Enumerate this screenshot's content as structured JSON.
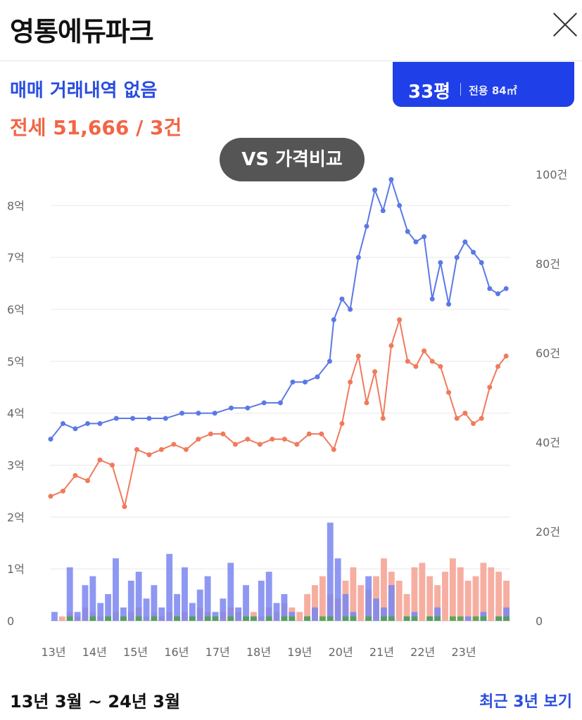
{
  "header": {
    "title": "영통에듀파크"
  },
  "summary": {
    "sale_text": "매매 거래내역 없음",
    "jeonse_text": "전세 51,666 / 3건"
  },
  "size_badge": {
    "pyeong": "33평",
    "area": "전용 84㎡"
  },
  "compare_button": "VS 가격비교",
  "footer": {
    "range": "13년 3월 ~ 24년 3월",
    "recent_link": "최근 3년 보기"
  },
  "colors": {
    "sale": "#5b78e6",
    "jeonse": "#f07a5c",
    "bar_sale": "#7a86f0",
    "bar_jeonse": "#f5a090",
    "bar_other": "#4aa24a",
    "accent": "#2a4de0"
  },
  "chart_data": {
    "type": "line",
    "x_ticks": [
      "13년",
      "14년",
      "15년",
      "16년",
      "17년",
      "18년",
      "19년",
      "20년",
      "21년",
      "22년",
      "23년"
    ],
    "y_left": {
      "ticks": [
        "0",
        "1억",
        "2억",
        "3억",
        "4억",
        "5억",
        "6억",
        "7억",
        "8억"
      ],
      "range": [
        0,
        8.6
      ],
      "unit": "억"
    },
    "y_right": {
      "ticks": [
        "0",
        "20건",
        "40건",
        "60건",
        "80건",
        "100건"
      ],
      "range": [
        0,
        100
      ]
    },
    "x_range": [
      2013.0,
      2024.2
    ],
    "series": [
      {
        "key": "sale",
        "x": [
          2013.0,
          2013.3,
          2013.6,
          2013.9,
          2014.2,
          2014.6,
          2015.0,
          2015.4,
          2015.8,
          2016.2,
          2016.6,
          2017.0,
          2017.4,
          2017.8,
          2018.2,
          2018.6,
          2018.9,
          2019.2,
          2019.5,
          2019.8,
          2019.9,
          2020.1,
          2020.3,
          2020.5,
          2020.7,
          2020.9,
          2021.1,
          2021.3,
          2021.5,
          2021.7,
          2021.9,
          2022.1,
          2022.3,
          2022.5,
          2022.7,
          2022.9,
          2023.1,
          2023.3,
          2023.5,
          2023.7,
          2023.9,
          2024.1
        ],
        "y": [
          3.5,
          3.8,
          3.7,
          3.8,
          3.8,
          3.9,
          3.9,
          3.9,
          3.9,
          4.0,
          4.0,
          4.0,
          4.1,
          4.1,
          4.2,
          4.2,
          4.6,
          4.6,
          4.7,
          5.0,
          5.8,
          6.2,
          6.0,
          7.0,
          7.6,
          8.3,
          7.9,
          8.5,
          8.0,
          7.5,
          7.3,
          7.4,
          6.2,
          6.9,
          6.1,
          7.0,
          7.3,
          7.1,
          6.9,
          6.4,
          6.3,
          6.4
        ]
      },
      {
        "key": "jeonse",
        "x": [
          2013.0,
          2013.3,
          2013.6,
          2013.9,
          2014.2,
          2014.5,
          2014.8,
          2015.1,
          2015.4,
          2015.7,
          2016.0,
          2016.3,
          2016.6,
          2016.9,
          2017.2,
          2017.5,
          2017.8,
          2018.1,
          2018.4,
          2018.7,
          2019.0,
          2019.3,
          2019.6,
          2019.9,
          2020.1,
          2020.3,
          2020.5,
          2020.7,
          2020.9,
          2021.1,
          2021.3,
          2021.5,
          2021.7,
          2021.9,
          2022.1,
          2022.3,
          2022.5,
          2022.7,
          2022.9,
          2023.1,
          2023.3,
          2023.5,
          2023.7,
          2023.9,
          2024.1
        ],
        "y": [
          2.4,
          2.5,
          2.8,
          2.7,
          3.1,
          3.0,
          2.2,
          3.3,
          3.2,
          3.3,
          3.4,
          3.3,
          3.5,
          3.6,
          3.6,
          3.4,
          3.5,
          3.4,
          3.5,
          3.5,
          3.4,
          3.6,
          3.6,
          3.3,
          3.8,
          4.6,
          5.1,
          4.2,
          4.8,
          3.9,
          5.3,
          5.8,
          5.0,
          4.9,
          5.2,
          5.0,
          4.9,
          4.4,
          3.9,
          4.0,
          3.8,
          3.9,
          4.5,
          4.9,
          5.1
        ]
      }
    ],
    "bars_sale": [
      2,
      0,
      12,
      2,
      8,
      10,
      4,
      6,
      14,
      3,
      9,
      11,
      5,
      8,
      3,
      15,
      6,
      12,
      4,
      7,
      10,
      2,
      5,
      13,
      3,
      8,
      1,
      9,
      11,
      4,
      6,
      2,
      0,
      1,
      3,
      0,
      22,
      14,
      6,
      2,
      0,
      10,
      5,
      3,
      8,
      0,
      1,
      2,
      0,
      1,
      3,
      0,
      0,
      0,
      1,
      0,
      2,
      0,
      1,
      3
    ],
    "bars_jeonse": [
      0,
      1,
      2,
      1,
      3,
      2,
      1,
      1,
      2,
      1,
      2,
      3,
      1,
      2,
      1,
      2,
      1,
      2,
      1,
      3,
      2,
      1,
      2,
      3,
      2,
      1,
      2,
      1,
      3,
      2,
      4,
      3,
      2,
      6,
      8,
      10,
      6,
      5,
      9,
      12,
      8,
      7,
      10,
      14,
      11,
      9,
      6,
      12,
      13,
      10,
      8,
      11,
      14,
      12,
      9,
      10,
      13,
      12,
      11,
      9
    ],
    "bars_other": [
      0,
      0,
      1,
      0,
      0,
      1,
      0,
      1,
      0,
      1,
      0,
      1,
      0,
      1,
      0,
      0,
      1,
      0,
      1,
      0,
      1,
      1,
      0,
      1,
      0,
      1,
      1,
      0,
      1,
      0,
      1,
      1,
      0,
      1,
      0,
      1,
      1,
      0,
      1,
      1,
      0,
      1,
      0,
      1,
      1,
      0,
      1,
      1,
      0,
      1,
      1,
      0,
      1,
      1,
      0,
      1,
      1,
      0,
      1,
      1
    ]
  }
}
